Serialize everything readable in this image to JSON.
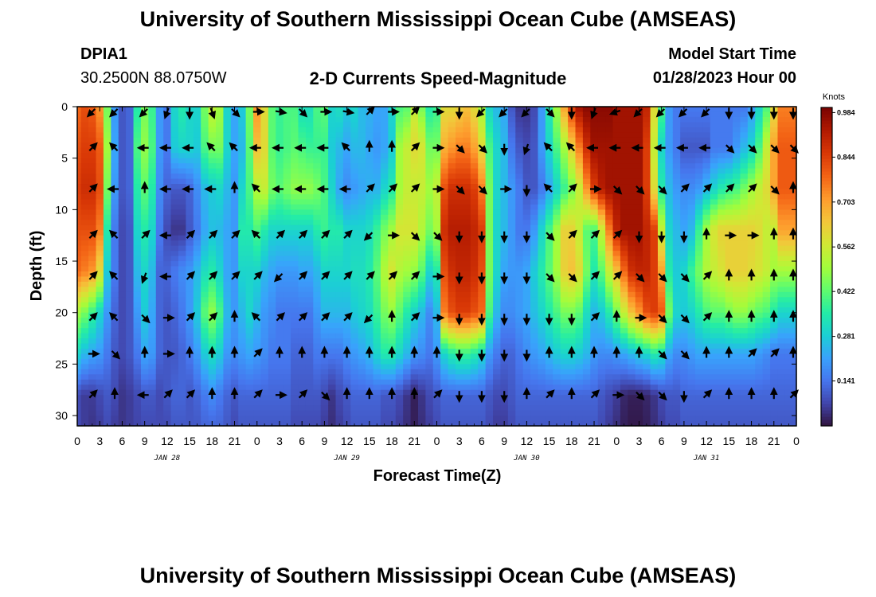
{
  "header": {
    "main_title": "University of Southern Mississippi Ocean Cube (AMSEAS)",
    "station_id": "DPIA1",
    "station_coords": "30.2500N  88.0750W",
    "chart_title": "2-D Currents Speed-Magnitude",
    "model_start_label": "Model Start Time",
    "model_start_value": "01/28/2023 Hour 00",
    "footer_title": "University of Southern Mississippi Ocean Cube (AMSEAS)"
  },
  "colors": {
    "scale": [
      "#30123b",
      "#4145ab",
      "#4675ed",
      "#39a2fc",
      "#1bcfd4",
      "#24eca6",
      "#61fc6c",
      "#a4fc3b",
      "#d1e834",
      "#f3c63a",
      "#fe9b2d",
      "#f36315",
      "#d93806",
      "#b11901",
      "#7a0402"
    ]
  },
  "chart_data": {
    "type": "heatmap",
    "title": "2-D Currents Speed-Magnitude",
    "xlabel": "Forecast Time(Z)",
    "ylabel": "Depth (ft)",
    "x_range": [
      0,
      96
    ],
    "y_range": [
      0,
      31
    ],
    "x_ticks": [
      0,
      3,
      6,
      9,
      12,
      15,
      18,
      21,
      24,
      27,
      30,
      33,
      36,
      39,
      42,
      45,
      48,
      51,
      54,
      57,
      60,
      63,
      66,
      69,
      72,
      75,
      78,
      81,
      84,
      87,
      90,
      93,
      96
    ],
    "x_tick_labels": [
      "0",
      "3",
      "6",
      "9",
      "12",
      "15",
      "18",
      "21",
      "0",
      "3",
      "6",
      "9",
      "12",
      "15",
      "18",
      "21",
      "0",
      "3",
      "6",
      "9",
      "12",
      "15",
      "18",
      "21",
      "0",
      "3",
      "6",
      "9",
      "12",
      "15",
      "18",
      "21",
      "0"
    ],
    "y_ticks": [
      0,
      5,
      10,
      15,
      20,
      25,
      30
    ],
    "y_tick_labels": [
      "0",
      "5",
      "10",
      "15",
      "20",
      "25",
      "30"
    ],
    "date_labels": [
      {
        "text": "JAN 28",
        "x": 12
      },
      {
        "text": "JAN 29",
        "x": 36
      },
      {
        "text": "JAN 30",
        "x": 60
      },
      {
        "text": "JAN 31",
        "x": 84
      }
    ],
    "colorbar": {
      "unit": "Knots",
      "range": [
        0.0,
        1.0
      ],
      "ticks": [
        0.141,
        0.281,
        0.422,
        0.562,
        0.703,
        0.844,
        0.984
      ],
      "tick_labels": [
        "0.141",
        "0.281",
        "0.422",
        "0.562",
        "0.703",
        "0.844",
        "0.984"
      ]
    },
    "hours": [
      0,
      1,
      2,
      3,
      4,
      5,
      6,
      7,
      8,
      9,
      10,
      11,
      12,
      13,
      14,
      15,
      16,
      17,
      18,
      19,
      20,
      21,
      22,
      23,
      24,
      25,
      26,
      27,
      28,
      29,
      30,
      31,
      32,
      33,
      34,
      35,
      36,
      37,
      38,
      39,
      40,
      41,
      42,
      43,
      44,
      45,
      46,
      47,
      48,
      49,
      50,
      51,
      52,
      53,
      54,
      55,
      56,
      57,
      58,
      59,
      60,
      61,
      62,
      63,
      64,
      65,
      66,
      67,
      68,
      69,
      70,
      71,
      72,
      73,
      74,
      75,
      76,
      77,
      78,
      79,
      80,
      81,
      82,
      83,
      84,
      85,
      86,
      87,
      88,
      89,
      90,
      91,
      92,
      93,
      94,
      95,
      96
    ],
    "depths": [
      0,
      4,
      8,
      12,
      16,
      20,
      24,
      28,
      31
    ],
    "speed": [
      [
        0.78,
        0.82,
        0.8,
        0.72,
        0.45,
        0.2,
        0.1,
        0.12,
        0.35,
        0.45,
        0.38,
        0.2,
        0.15,
        0.3,
        0.35,
        0.3,
        0.3,
        0.45,
        0.55,
        0.5,
        0.3,
        0.22,
        0.28,
        0.45,
        0.72,
        0.6,
        0.42,
        0.38,
        0.4,
        0.4,
        0.32,
        0.32,
        0.4,
        0.42,
        0.3,
        0.32,
        0.28,
        0.3,
        0.25,
        0.24,
        0.22,
        0.22,
        0.3,
        0.4,
        0.42,
        0.55,
        0.45,
        0.35,
        0.38,
        0.6,
        0.6,
        0.62,
        0.65,
        0.6,
        0.5,
        0.3,
        0.25,
        0.22,
        0.1,
        0.05,
        0.05,
        0.08,
        0.2,
        0.35,
        0.5,
        0.7,
        0.85,
        0.95,
        0.98,
        0.98,
        0.98,
        0.98,
        0.95,
        0.95,
        0.95,
        0.95,
        0.9,
        0.6,
        0.4,
        0.2,
        0.15,
        0.15,
        0.15,
        0.15,
        0.15,
        0.15,
        0.15,
        0.15,
        0.15,
        0.15,
        0.2,
        0.3,
        0.4,
        0.6,
        0.75,
        0.75,
        0.75
      ],
      [
        0.82,
        0.85,
        0.85,
        0.8,
        0.5,
        0.22,
        0.1,
        0.12,
        0.4,
        0.48,
        0.4,
        0.2,
        0.15,
        0.28,
        0.3,
        0.3,
        0.28,
        0.4,
        0.45,
        0.45,
        0.3,
        0.22,
        0.25,
        0.42,
        0.65,
        0.6,
        0.42,
        0.38,
        0.4,
        0.42,
        0.4,
        0.38,
        0.38,
        0.38,
        0.28,
        0.25,
        0.22,
        0.25,
        0.25,
        0.22,
        0.2,
        0.22,
        0.28,
        0.5,
        0.55,
        0.6,
        0.58,
        0.45,
        0.45,
        0.68,
        0.72,
        0.75,
        0.75,
        0.7,
        0.6,
        0.4,
        0.3,
        0.25,
        0.15,
        0.1,
        0.08,
        0.1,
        0.2,
        0.3,
        0.4,
        0.5,
        0.62,
        0.75,
        0.88,
        0.95,
        0.95,
        0.95,
        0.95,
        0.95,
        0.95,
        0.95,
        0.85,
        0.55,
        0.3,
        0.2,
        0.15,
        0.1,
        0.1,
        0.1,
        0.1,
        0.15,
        0.15,
        0.15,
        0.2,
        0.25,
        0.3,
        0.4,
        0.55,
        0.7,
        0.8,
        0.8,
        0.8
      ],
      [
        0.85,
        0.88,
        0.88,
        0.82,
        0.45,
        0.2,
        0.1,
        0.12,
        0.35,
        0.42,
        0.35,
        0.18,
        0.12,
        0.1,
        0.1,
        0.12,
        0.18,
        0.25,
        0.28,
        0.3,
        0.25,
        0.2,
        0.3,
        0.4,
        0.52,
        0.55,
        0.45,
        0.42,
        0.45,
        0.48,
        0.48,
        0.48,
        0.45,
        0.4,
        0.3,
        0.22,
        0.18,
        0.2,
        0.22,
        0.24,
        0.24,
        0.3,
        0.35,
        0.5,
        0.55,
        0.55,
        0.55,
        0.5,
        0.55,
        0.82,
        0.88,
        0.88,
        0.88,
        0.85,
        0.75,
        0.45,
        0.3,
        0.25,
        0.2,
        0.15,
        0.1,
        0.1,
        0.15,
        0.22,
        0.3,
        0.38,
        0.45,
        0.55,
        0.72,
        0.85,
        0.92,
        0.95,
        0.95,
        0.95,
        0.95,
        0.95,
        0.85,
        0.6,
        0.35,
        0.25,
        0.2,
        0.18,
        0.18,
        0.2,
        0.25,
        0.3,
        0.35,
        0.38,
        0.4,
        0.45,
        0.5,
        0.55,
        0.6,
        0.7,
        0.8,
        0.8,
        0.8
      ],
      [
        0.82,
        0.82,
        0.82,
        0.75,
        0.35,
        0.15,
        0.08,
        0.1,
        0.3,
        0.35,
        0.3,
        0.15,
        0.08,
        0.05,
        0.05,
        0.1,
        0.15,
        0.22,
        0.26,
        0.25,
        0.22,
        0.2,
        0.35,
        0.35,
        0.4,
        0.35,
        0.3,
        0.3,
        0.3,
        0.3,
        0.3,
        0.3,
        0.35,
        0.38,
        0.35,
        0.35,
        0.3,
        0.3,
        0.3,
        0.32,
        0.38,
        0.45,
        0.5,
        0.58,
        0.58,
        0.58,
        0.52,
        0.45,
        0.5,
        0.88,
        0.92,
        0.92,
        0.92,
        0.9,
        0.85,
        0.45,
        0.3,
        0.25,
        0.2,
        0.15,
        0.15,
        0.2,
        0.3,
        0.4,
        0.5,
        0.62,
        0.62,
        0.55,
        0.42,
        0.4,
        0.55,
        0.75,
        0.9,
        0.95,
        0.95,
        0.95,
        0.9,
        0.85,
        0.55,
        0.3,
        0.25,
        0.22,
        0.25,
        0.38,
        0.5,
        0.58,
        0.62,
        0.62,
        0.62,
        0.62,
        0.62,
        0.6,
        0.55,
        0.55,
        0.7,
        0.7,
        0.7
      ],
      [
        0.78,
        0.75,
        0.72,
        0.6,
        0.28,
        0.15,
        0.08,
        0.1,
        0.25,
        0.3,
        0.25,
        0.12,
        0.12,
        0.15,
        0.18,
        0.2,
        0.25,
        0.32,
        0.35,
        0.3,
        0.22,
        0.2,
        0.3,
        0.3,
        0.3,
        0.25,
        0.22,
        0.2,
        0.2,
        0.2,
        0.22,
        0.22,
        0.25,
        0.3,
        0.3,
        0.3,
        0.3,
        0.32,
        0.32,
        0.35,
        0.42,
        0.52,
        0.58,
        0.52,
        0.5,
        0.48,
        0.42,
        0.3,
        0.35,
        0.82,
        0.88,
        0.9,
        0.9,
        0.88,
        0.82,
        0.45,
        0.3,
        0.22,
        0.2,
        0.2,
        0.22,
        0.28,
        0.35,
        0.42,
        0.5,
        0.62,
        0.65,
        0.6,
        0.45,
        0.35,
        0.42,
        0.55,
        0.65,
        0.78,
        0.88,
        0.9,
        0.9,
        0.85,
        0.7,
        0.35,
        0.28,
        0.3,
        0.38,
        0.45,
        0.52,
        0.55,
        0.58,
        0.62,
        0.62,
        0.62,
        0.6,
        0.58,
        0.55,
        0.5,
        0.5,
        0.5,
        0.5
      ],
      [
        0.5,
        0.45,
        0.38,
        0.3,
        0.2,
        0.12,
        0.08,
        0.1,
        0.2,
        0.28,
        0.22,
        0.12,
        0.1,
        0.12,
        0.15,
        0.2,
        0.28,
        0.42,
        0.48,
        0.4,
        0.25,
        0.2,
        0.25,
        0.3,
        0.25,
        0.2,
        0.18,
        0.15,
        0.15,
        0.15,
        0.15,
        0.15,
        0.2,
        0.25,
        0.25,
        0.25,
        0.25,
        0.28,
        0.3,
        0.32,
        0.38,
        0.45,
        0.48,
        0.42,
        0.35,
        0.3,
        0.25,
        0.18,
        0.25,
        0.75,
        0.82,
        0.85,
        0.85,
        0.82,
        0.78,
        0.4,
        0.25,
        0.18,
        0.18,
        0.2,
        0.22,
        0.26,
        0.3,
        0.35,
        0.4,
        0.45,
        0.45,
        0.42,
        0.32,
        0.25,
        0.28,
        0.35,
        0.45,
        0.55,
        0.65,
        0.72,
        0.82,
        0.85,
        0.8,
        0.45,
        0.3,
        0.28,
        0.3,
        0.35,
        0.4,
        0.42,
        0.42,
        0.45,
        0.48,
        0.48,
        0.45,
        0.42,
        0.4,
        0.35,
        0.3,
        0.3,
        0.3
      ],
      [
        0.3,
        0.25,
        0.22,
        0.2,
        0.15,
        0.1,
        0.08,
        0.1,
        0.15,
        0.22,
        0.2,
        0.12,
        0.1,
        0.1,
        0.12,
        0.15,
        0.2,
        0.28,
        0.32,
        0.28,
        0.2,
        0.18,
        0.2,
        0.22,
        0.2,
        0.18,
        0.15,
        0.15,
        0.15,
        0.12,
        0.12,
        0.12,
        0.15,
        0.15,
        0.15,
        0.15,
        0.18,
        0.2,
        0.22,
        0.25,
        0.3,
        0.35,
        0.35,
        0.3,
        0.25,
        0.2,
        0.18,
        0.15,
        0.2,
        0.3,
        0.35,
        0.38,
        0.38,
        0.35,
        0.3,
        0.2,
        0.15,
        0.12,
        0.12,
        0.15,
        0.18,
        0.2,
        0.22,
        0.25,
        0.28,
        0.3,
        0.3,
        0.28,
        0.25,
        0.2,
        0.18,
        0.18,
        0.2,
        0.22,
        0.25,
        0.28,
        0.3,
        0.35,
        0.32,
        0.22,
        0.18,
        0.18,
        0.2,
        0.22,
        0.22,
        0.22,
        0.22,
        0.22,
        0.22,
        0.22,
        0.22,
        0.2,
        0.18,
        0.15,
        0.15,
        0.15,
        0.15
      ],
      [
        0.08,
        0.06,
        0.06,
        0.08,
        0.1,
        0.08,
        0.05,
        0.06,
        0.08,
        0.1,
        0.1,
        0.08,
        0.1,
        0.12,
        0.12,
        0.1,
        0.12,
        0.15,
        0.18,
        0.15,
        0.12,
        0.1,
        0.12,
        0.12,
        0.12,
        0.12,
        0.12,
        0.12,
        0.12,
        0.1,
        0.1,
        0.1,
        0.1,
        0.08,
        0.05,
        0.08,
        0.1,
        0.12,
        0.12,
        0.12,
        0.12,
        0.1,
        0.1,
        0.08,
        0.05,
        0.02,
        0.05,
        0.08,
        0.1,
        0.12,
        0.12,
        0.12,
        0.12,
        0.12,
        0.12,
        0.1,
        0.08,
        0.08,
        0.1,
        0.12,
        0.12,
        0.12,
        0.12,
        0.12,
        0.12,
        0.12,
        0.12,
        0.12,
        0.12,
        0.12,
        0.1,
        0.08,
        0.06,
        0.03,
        0.02,
        0.02,
        0.03,
        0.05,
        0.08,
        0.1,
        0.1,
        0.12,
        0.12,
        0.12,
        0.12,
        0.12,
        0.12,
        0.12,
        0.12,
        0.12,
        0.12,
        0.12,
        0.12,
        0.12,
        0.12,
        0.12,
        0.12
      ],
      [
        0.08,
        0.06,
        0.05,
        0.06,
        0.08,
        0.06,
        0.05,
        0.06,
        0.07,
        0.08,
        0.08,
        0.08,
        0.08,
        0.1,
        0.1,
        0.1,
        0.1,
        0.12,
        0.12,
        0.12,
        0.1,
        0.08,
        0.1,
        0.1,
        0.1,
        0.1,
        0.1,
        0.1,
        0.1,
        0.08,
        0.08,
        0.08,
        0.08,
        0.06,
        0.04,
        0.06,
        0.08,
        0.1,
        0.1,
        0.1,
        0.1,
        0.08,
        0.08,
        0.06,
        0.04,
        0.02,
        0.04,
        0.06,
        0.08,
        0.1,
        0.1,
        0.1,
        0.1,
        0.1,
        0.1,
        0.08,
        0.06,
        0.06,
        0.08,
        0.1,
        0.1,
        0.1,
        0.1,
        0.1,
        0.1,
        0.1,
        0.1,
        0.1,
        0.1,
        0.1,
        0.08,
        0.06,
        0.04,
        0.02,
        0.01,
        0.01,
        0.02,
        0.04,
        0.06,
        0.08,
        0.08,
        0.1,
        0.1,
        0.1,
        0.1,
        0.1,
        0.1,
        0.1,
        0.1,
        0.1,
        0.1,
        0.1,
        0.1,
        0.1,
        0.1,
        0.1,
        0.1
      ]
    ],
    "vector_hours": [
      2,
      5,
      9,
      12,
      15,
      18,
      21,
      24,
      27,
      30,
      33,
      36,
      39,
      42,
      45,
      48,
      51,
      54,
      57,
      60,
      63,
      66,
      69,
      72,
      75,
      78,
      81,
      84,
      87,
      90,
      93,
      96
    ],
    "vector_depths": [
      0.5,
      4,
      8,
      12.5,
      16.5,
      20.5,
      24,
      28
    ],
    "vector_dir_deg": [
      [
        225,
        225,
        225,
        200,
        180,
        160,
        135,
        90,
        100,
        135,
        90,
        100,
        45,
        90,
        45,
        90,
        180,
        225,
        225,
        225,
        135,
        180,
        200,
        250,
        225,
        225,
        225,
        225,
        180,
        180,
        180,
        180
      ],
      [
        45,
        315,
        270,
        270,
        270,
        315,
        315,
        270,
        270,
        270,
        270,
        315,
        0,
        0,
        45,
        90,
        135,
        135,
        180,
        200,
        315,
        315,
        270,
        270,
        270,
        270,
        270,
        270,
        135,
        135,
        135,
        135
      ],
      [
        45,
        270,
        0,
        270,
        270,
        270,
        0,
        315,
        270,
        270,
        270,
        270,
        45,
        45,
        45,
        90,
        135,
        135,
        90,
        180,
        315,
        45,
        90,
        135,
        135,
        135,
        45,
        45,
        45,
        45,
        135,
        0
      ],
      [
        45,
        315,
        45,
        270,
        45,
        45,
        45,
        315,
        45,
        45,
        45,
        45,
        225,
        90,
        135,
        135,
        180,
        180,
        180,
        180,
        135,
        45,
        45,
        45,
        180,
        180,
        180,
        0,
        90,
        90,
        0,
        0
      ],
      [
        45,
        315,
        200,
        270,
        45,
        45,
        45,
        45,
        225,
        45,
        45,
        45,
        45,
        45,
        45,
        90,
        180,
        180,
        180,
        180,
        135,
        135,
        45,
        45,
        135,
        135,
        135,
        45,
        0,
        0,
        0,
        0
      ],
      [
        45,
        315,
        135,
        90,
        45,
        45,
        0,
        315,
        45,
        45,
        45,
        45,
        225,
        0,
        45,
        90,
        180,
        180,
        180,
        180,
        180,
        180,
        45,
        0,
        90,
        135,
        135,
        45,
        0,
        0,
        0,
        0
      ],
      [
        90,
        135,
        0,
        90,
        0,
        0,
        0,
        45,
        0,
        0,
        0,
        0,
        0,
        0,
        0,
        0,
        180,
        180,
        180,
        180,
        0,
        0,
        0,
        0,
        0,
        135,
        135,
        0,
        0,
        45,
        45,
        0
      ],
      [
        45,
        0,
        270,
        45,
        45,
        0,
        0,
        45,
        90,
        45,
        135,
        0,
        0,
        0,
        0,
        45,
        180,
        180,
        180,
        0,
        45,
        0,
        45,
        90,
        135,
        135,
        180,
        45,
        0,
        0,
        0,
        45
      ]
    ]
  }
}
